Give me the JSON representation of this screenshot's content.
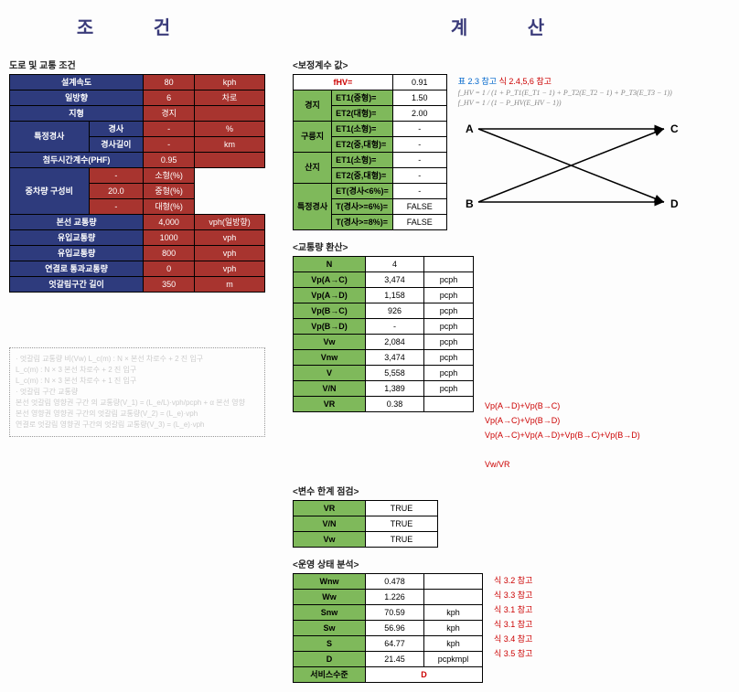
{
  "headings": {
    "left": "조   건",
    "right": "계   산"
  },
  "cond": {
    "title": "도로 및 교통 조건",
    "rows": [
      {
        "label": "설계속도",
        "value": "80",
        "unit": "kph"
      },
      {
        "label": "일방향",
        "value": "6",
        "unit": "차로"
      },
      {
        "label": "지형",
        "value": "경지",
        "unit": ""
      },
      {
        "label": "경사",
        "value": "-",
        "unit": "%",
        "group": "특정경사"
      },
      {
        "label": "경사길이",
        "value": "-",
        "unit": "km",
        "group": "특정경사"
      },
      {
        "label": "첨두시간계수(PHF)",
        "value": "0.95",
        "unit": ""
      },
      {
        "label": "소형(%)",
        "value": "-",
        "unit": "소형(%)",
        "group": "중차량 구성비"
      },
      {
        "label": "중형(%)",
        "value": "20.0",
        "unit": "중형(%)",
        "group": "중차량 구성비"
      },
      {
        "label": "대형(%)",
        "value": "-",
        "unit": "대형(%)",
        "group": "중차량 구성비"
      },
      {
        "label": "본선 교통량",
        "value": "4,000",
        "unit": "vph(일방향)"
      },
      {
        "label": "유입교통량",
        "value": "1000",
        "unit": "vph"
      },
      {
        "label": "유입교통량",
        "value": "800",
        "unit": "vph"
      },
      {
        "label": "연결로 통과교통량",
        "value": "0",
        "unit": "vph"
      },
      {
        "label": "엇갈림구간 길이",
        "value": "350",
        "unit": "m"
      }
    ]
  },
  "corr": {
    "title": "<보정계수 값>",
    "fhv_label": "fHV=",
    "fhv_value": "0.91",
    "rows": [
      {
        "group": "경지",
        "label": "ET1(중형)=",
        "value": "1.50"
      },
      {
        "group": "경지",
        "label": "ET2(대형)=",
        "value": "2.00"
      },
      {
        "group": "구릉지",
        "label": "ET1(소형)=",
        "value": "-"
      },
      {
        "group": "구릉지",
        "label": "ET2(중,대형)=",
        "value": "-"
      },
      {
        "group": "산지",
        "label": "ET1(소형)=",
        "value": "-"
      },
      {
        "group": "산지",
        "label": "ET2(중,대형)=",
        "value": "-"
      },
      {
        "group": "특정경사",
        "label": "ET(경사<6%)=",
        "value": "-"
      },
      {
        "group": "특정경사",
        "label": "T(경사>=6%)=",
        "value": "FALSE"
      },
      {
        "group": "특정경사",
        "label": "T(경사>=8%)=",
        "value": "FALSE"
      }
    ],
    "note_blue": "표 2.3 참고",
    "note_red": "식 2.4,5,6 참고",
    "formula1": "f_HV = 1 / (1 + P_T1(E_T1 − 1) + P_T2(E_T2 − 1) + P_T3(E_T3 − 1))",
    "formula2": "f_HV = 1 / (1 − P_HV(E_HV − 1))"
  },
  "diagram": {
    "A": "A",
    "B": "B",
    "C": "C",
    "D": "D"
  },
  "traffic": {
    "title": "<교통량 환산>",
    "rows": [
      {
        "label": "N",
        "value": "4",
        "unit": ""
      },
      {
        "label": "Vp(A→C)",
        "value": "3,474",
        "unit": "pcph"
      },
      {
        "label": "Vp(A→D)",
        "value": "1,158",
        "unit": "pcph"
      },
      {
        "label": "Vp(B→C)",
        "value": "926",
        "unit": "pcph"
      },
      {
        "label": "Vp(B→D)",
        "value": "-",
        "unit": "pcph"
      },
      {
        "label": "Vw",
        "value": "2,084",
        "unit": "pcph",
        "annot": "Vp(A→D)+Vp(B→C)"
      },
      {
        "label": "Vnw",
        "value": "3,474",
        "unit": "pcph",
        "annot": "Vp(A→C)+Vp(B→D)"
      },
      {
        "label": "V",
        "value": "5,558",
        "unit": "pcph",
        "annot": "Vp(A→C)+Vp(A→D)+Vp(B→C)+Vp(B→D)"
      },
      {
        "label": "V/N",
        "value": "1,389",
        "unit": "pcph"
      },
      {
        "label": "VR",
        "value": "0.38",
        "unit": "",
        "annot": "Vw/VR"
      }
    ]
  },
  "limit": {
    "title": "<변수 한계 점검>",
    "rows": [
      {
        "label": "VR",
        "value": "TRUE"
      },
      {
        "label": "V/N",
        "value": "TRUE"
      },
      {
        "label": "Vw",
        "value": "TRUE"
      }
    ]
  },
  "oper": {
    "title": "<운영 상태 분석>",
    "rows": [
      {
        "label": "Wnw",
        "value": "0.478",
        "unit": "",
        "note": "식 3.2 참고"
      },
      {
        "label": "Ww",
        "value": "1.226",
        "unit": "",
        "note": "식 3.3 참고"
      },
      {
        "label": "Snw",
        "value": "70.59",
        "unit": "kph",
        "note": "식 3.1 참고"
      },
      {
        "label": "Sw",
        "value": "56.96",
        "unit": "kph",
        "note": "식 3.1 참고"
      },
      {
        "label": "S",
        "value": "64.77",
        "unit": "kph",
        "note": "식 3.4 참고"
      },
      {
        "label": "D",
        "value": "21.45",
        "unit": "pcpkmpl",
        "note": "식 3.5 참고"
      }
    ],
    "los_label": "서비스수준",
    "los_value": "D"
  },
  "notes": {
    "lines": [
      "· 엇갈림 교통량 비(Vw)   L_c(m) : N × 본선 차로수 + 2 진 입구",
      "                         L_c(m) : N × 3    본선 차로수 + 2 진 입구",
      "                         L_c(m) : N × 3    본선 차로수 + 1 진 입구",
      "· 엇갈림 구간 교통량",
      "  본선 엇갈림 영향권 구간 의 교통량(V_1) = (L_e/L)·vph/pcph + α 본선 영향",
      "  본선 영향권 영향권 구간의 엇갈림 교통량(V_2) = (L_e)·vph",
      "  연결로 엇갈림 영향권 구간의 엇갈림 교통량(V_3) = (L_e)·vph"
    ]
  },
  "colors": {
    "navy": "#2e3b7d",
    "red": "#a8342f",
    "green": "#7fb95b",
    "txtred": "#c00",
    "txtblue": "#06c"
  }
}
